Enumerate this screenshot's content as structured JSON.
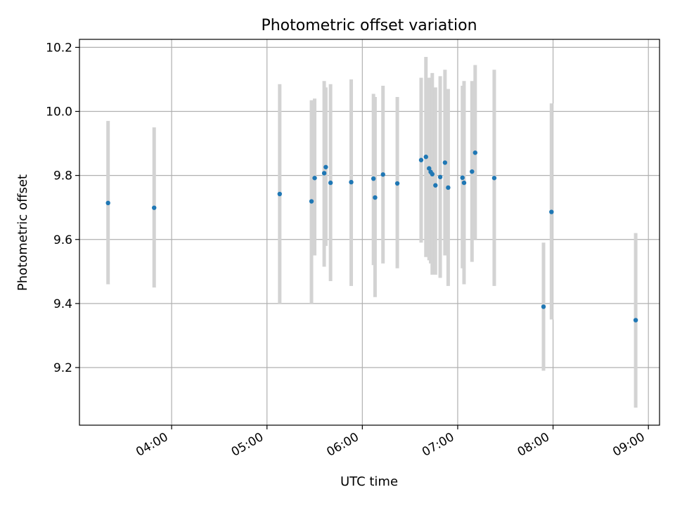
{
  "chart_data": {
    "type": "scatter",
    "title": "Photometric offset variation",
    "xlabel": "UTC time",
    "ylabel": "Photometric offset",
    "x_is_time": true,
    "xlim": [
      "03:02",
      "09:07"
    ],
    "ylim": [
      9.02,
      10.225
    ],
    "grid": true,
    "xticks": [
      "04:00",
      "05:00",
      "06:00",
      "07:00",
      "08:00",
      "09:00"
    ],
    "yticks": [
      9.2,
      9.4,
      9.6,
      9.8,
      10.0,
      10.2
    ],
    "ytick_labels": [
      "9.2",
      "9.4",
      "9.6",
      "9.8",
      "10.0",
      "10.2"
    ],
    "colors": {
      "point": "#1f77b4",
      "errorbar": "#d3d3d3",
      "grid": "#b0b0b0"
    },
    "points": [
      {
        "t": "03:20",
        "y": 9.714,
        "lo": 9.46,
        "hi": 9.97
      },
      {
        "t": "03:49",
        "y": 9.699,
        "lo": 9.45,
        "hi": 9.95
      },
      {
        "t": "05:08",
        "y": 9.742,
        "lo": 9.4,
        "hi": 10.085
      },
      {
        "t": "05:28",
        "y": 9.719,
        "lo": 9.4,
        "hi": 10.035
      },
      {
        "t": "05:30",
        "y": 9.792,
        "lo": 9.55,
        "hi": 10.04
      },
      {
        "t": "05:36",
        "y": 9.807,
        "lo": 9.515,
        "hi": 10.095
      },
      {
        "t": "05:37",
        "y": 9.826,
        "lo": 9.58,
        "hi": 10.075
      },
      {
        "t": "05:40",
        "y": 9.777,
        "lo": 9.47,
        "hi": 10.085
      },
      {
        "t": "05:53",
        "y": 9.779,
        "lo": 9.455,
        "hi": 10.1
      },
      {
        "t": "06:07",
        "y": 9.79,
        "lo": 9.52,
        "hi": 10.055
      },
      {
        "t": "06:08",
        "y": 9.731,
        "lo": 9.42,
        "hi": 10.045
      },
      {
        "t": "06:13",
        "y": 9.803,
        "lo": 9.525,
        "hi": 10.08
      },
      {
        "t": "06:22",
        "y": 9.775,
        "lo": 9.51,
        "hi": 10.045
      },
      {
        "t": "06:37",
        "y": 9.848,
        "lo": 9.59,
        "hi": 10.105
      },
      {
        "t": "06:40",
        "y": 9.858,
        "lo": 9.545,
        "hi": 10.17
      },
      {
        "t": "06:42",
        "y": 9.822,
        "lo": 9.535,
        "hi": 10.105
      },
      {
        "t": "06:43",
        "y": 9.811,
        "lo": 9.525,
        "hi": 10.105
      },
      {
        "t": "06:44",
        "y": 9.804,
        "lo": 9.49,
        "hi": 10.12
      },
      {
        "t": "06:46",
        "y": 9.769,
        "lo": 9.49,
        "hi": 10.075
      },
      {
        "t": "06:49",
        "y": 9.795,
        "lo": 9.48,
        "hi": 10.11
      },
      {
        "t": "06:52",
        "y": 9.84,
        "lo": 9.55,
        "hi": 10.13
      },
      {
        "t": "06:54",
        "y": 9.762,
        "lo": 9.455,
        "hi": 10.07
      },
      {
        "t": "07:03",
        "y": 9.793,
        "lo": 9.51,
        "hi": 10.08
      },
      {
        "t": "07:04",
        "y": 9.777,
        "lo": 9.46,
        "hi": 10.095
      },
      {
        "t": "07:09",
        "y": 9.812,
        "lo": 9.53,
        "hi": 10.095
      },
      {
        "t": "07:11",
        "y": 9.871,
        "lo": 9.6,
        "hi": 10.145
      },
      {
        "t": "07:23",
        "y": 9.792,
        "lo": 9.455,
        "hi": 10.13
      },
      {
        "t": "07:54",
        "y": 9.39,
        "lo": 9.19,
        "hi": 9.59
      },
      {
        "t": "07:59",
        "y": 9.686,
        "lo": 9.35,
        "hi": 10.025
      },
      {
        "t": "08:52",
        "y": 9.348,
        "lo": 9.075,
        "hi": 9.62
      }
    ]
  }
}
